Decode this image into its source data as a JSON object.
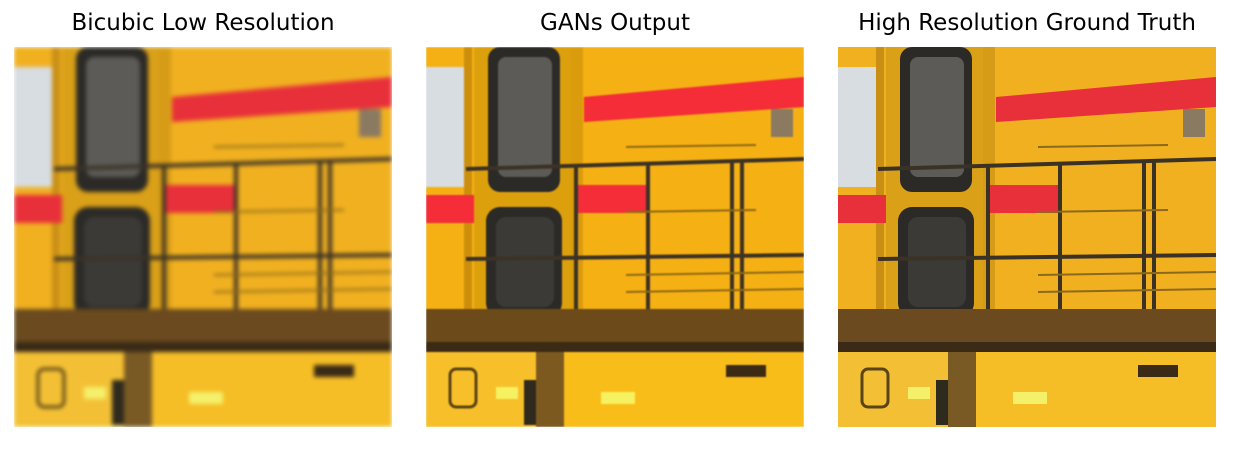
{
  "panels": [
    {
      "title": "Bicubic Low Resolution"
    },
    {
      "title": "GANs Output"
    },
    {
      "title": "High Resolution Ground Truth"
    }
  ],
  "colors": {
    "train_yellow": "#f2b21c",
    "stripe_red": "#e8303a",
    "railing": "#3b3226",
    "window_dark": "#2b2a26"
  }
}
